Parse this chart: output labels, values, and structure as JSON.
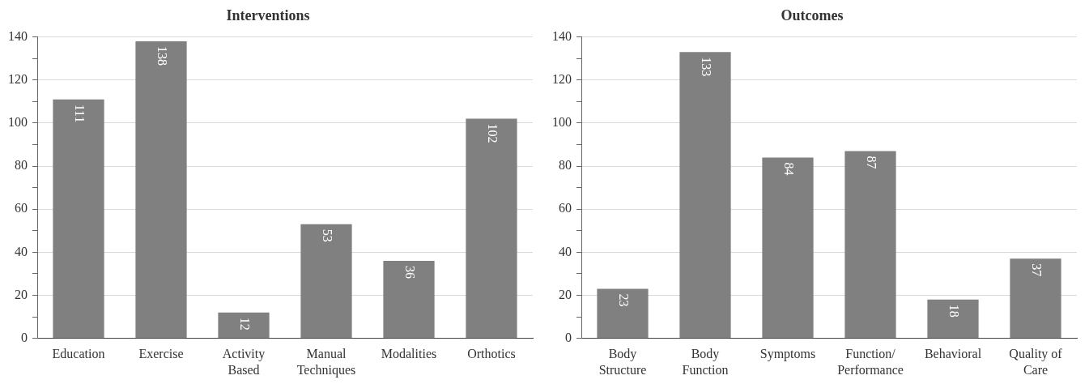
{
  "chart_data": [
    {
      "type": "bar",
      "title": "Interventions",
      "categories": [
        "Education",
        "Exercise",
        "Activity Based",
        "Manual Techniques",
        "Modalities",
        "Orthotics"
      ],
      "values": [
        111,
        138,
        12,
        53,
        36,
        102
      ],
      "color": "#808080",
      "ylim": [
        0,
        140
      ],
      "yticks": [
        0,
        {
          "value": 10,
          "label": null
        },
        20,
        {
          "value": 30,
          "label": null
        },
        40,
        {
          "value": 50,
          "label": null
        },
        60,
        {
          "value": 70,
          "label": null
        },
        80,
        {
          "value": 90,
          "label": null
        },
        100,
        {
          "value": 110,
          "label": null
        },
        120,
        {
          "value": 130,
          "label": null
        },
        140
      ],
      "grid": "y",
      "data_labels": true
    },
    {
      "type": "bar",
      "title": "Outcomes",
      "categories": [
        "Body Structure",
        "Body Function",
        "Symptoms",
        "Function/ Performance",
        "Behavioral",
        "Quality of Care"
      ],
      "values": [
        23,
        133,
        84,
        87,
        18,
        37
      ],
      "color": "#808080",
      "ylim": [
        0,
        140
      ],
      "yticks": [
        0,
        {
          "value": 10,
          "label": null
        },
        20,
        {
          "value": 30,
          "label": null
        },
        40,
        {
          "value": 50,
          "label": null
        },
        60,
        {
          "value": 70,
          "label": null
        },
        80,
        {
          "value": 90,
          "label": null
        },
        100,
        {
          "value": 110,
          "label": null
        },
        120,
        {
          "value": 130,
          "label": null
        },
        140
      ],
      "grid": "y",
      "data_labels": true
    }
  ]
}
